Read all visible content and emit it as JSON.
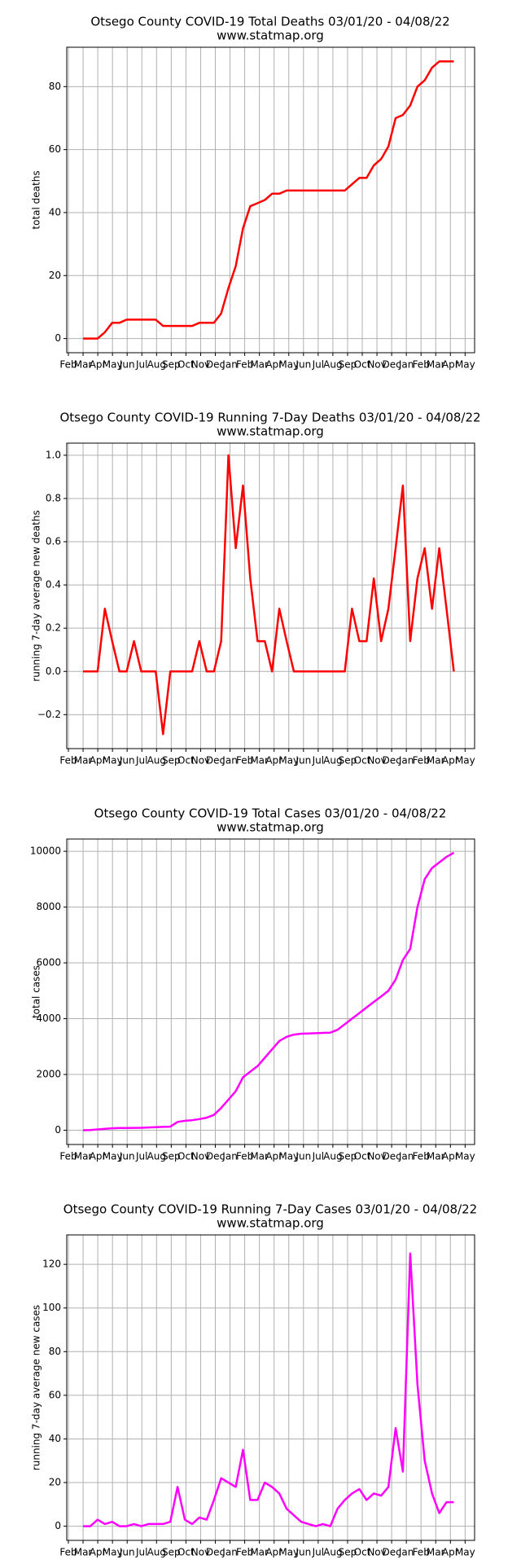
{
  "chart_data": [
    {
      "type": "line",
      "title": "Otsego County COVID-19 Total Deaths 03/01/20 - 04/08/22",
      "subtitle": "www.statmap.org",
      "ylabel": "total deaths",
      "xticks": [
        "Feb",
        "Mar",
        "Apr",
        "May",
        "Jun",
        "Jul",
        "Aug",
        "Sep",
        "Oct",
        "Nov",
        "Dec",
        "Jan",
        "Feb",
        "Mar",
        "Apr",
        "May",
        "Jun",
        "Jul",
        "Aug",
        "Sep",
        "Oct",
        "Nov",
        "Dec",
        "Jan",
        "Feb",
        "Mar",
        "Apr",
        "May"
      ],
      "color": "#ff0000",
      "grid": true,
      "ylim": [
        -4.5,
        92.5
      ],
      "yticks": [
        0,
        20,
        40,
        60,
        80
      ],
      "values": [
        0,
        0,
        0,
        2,
        5,
        5,
        6,
        6,
        6,
        6,
        6,
        4,
        4,
        4,
        4,
        4,
        5,
        5,
        5,
        8,
        16,
        23,
        35,
        42,
        43,
        44,
        46,
        46,
        47,
        47,
        47,
        47,
        47,
        47,
        47,
        47,
        47,
        49,
        51,
        51,
        55,
        57,
        61,
        70,
        71,
        74,
        80,
        82,
        86,
        88,
        88,
        88
      ]
    },
    {
      "type": "line",
      "title": "Otsego County COVID-19 Running 7-Day Deaths 03/01/20 - 04/08/22",
      "subtitle": "www.statmap.org",
      "ylabel": "running 7-day average new deaths",
      "xticks": [
        "Feb",
        "Mar",
        "Apr",
        "May",
        "Jun",
        "Jul",
        "Aug",
        "Sep",
        "Oct",
        "Nov",
        "Dec",
        "Jan",
        "Feb",
        "Mar",
        "Apr",
        "May",
        "Jun",
        "Jul",
        "Aug",
        "Sep",
        "Oct",
        "Nov",
        "Dec",
        "Jan",
        "Feb",
        "Mar",
        "Apr",
        "May"
      ],
      "color": "#ff0000",
      "grid": true,
      "ylim": [
        -0.357,
        1.056
      ],
      "yticks": [
        {
          "value": -0.2,
          "label": "−0.2"
        },
        {
          "value": 0,
          "label": "0.0"
        },
        0.2,
        0.4,
        0.6,
        0.8,
        {
          "value": 1,
          "label": "1.0"
        }
      ],
      "values": [
        0,
        0,
        0,
        0.29,
        0.14,
        0,
        0,
        0.14,
        0,
        0,
        0,
        -0.29,
        0,
        0,
        0,
        0,
        0.14,
        0,
        0,
        0.14,
        1.0,
        0.57,
        0.86,
        0.43,
        0.14,
        0.14,
        0,
        0.29,
        0.14,
        0,
        0,
        0,
        0,
        0,
        0,
        0,
        0,
        0.29,
        0.14,
        0.14,
        0.43,
        0.14,
        0.29,
        0.57,
        0.86,
        0.14,
        0.43,
        0.57,
        0.29,
        0.57,
        0.29,
        0
      ]
    },
    {
      "type": "line",
      "title": "Otsego County COVID-19 Total Cases 03/01/20 - 04/08/22",
      "subtitle": "www.statmap.org",
      "ylabel": "total cases",
      "xticks": [
        "Feb",
        "Mar",
        "Apr",
        "May",
        "Jun",
        "Jul",
        "Aug",
        "Sep",
        "Oct",
        "Nov",
        "Dec",
        "Jan",
        "Feb",
        "Mar",
        "Apr",
        "May",
        "Jun",
        "Jul",
        "Aug",
        "Sep",
        "Oct",
        "Nov",
        "Dec",
        "Jan",
        "Feb",
        "Mar",
        "Apr",
        "May"
      ],
      "color": "#ff00ff",
      "grid": true,
      "ylim": [
        -510,
        10440
      ],
      "yticks": [
        0,
        2000,
        4000,
        6000,
        8000,
        10000
      ],
      "values": [
        0,
        10,
        30,
        50,
        70,
        80,
        80,
        85,
        90,
        100,
        110,
        120,
        130,
        300,
        340,
        360,
        400,
        450,
        550,
        800,
        1100,
        1400,
        1900,
        2100,
        2300,
        2600,
        2900,
        3200,
        3350,
        3430,
        3460,
        3470,
        3480,
        3490,
        3500,
        3600,
        3800,
        4000,
        4200,
        4400,
        4600,
        4800,
        5000,
        5400,
        6100,
        6500,
        8000,
        9000,
        9400,
        9600,
        9800,
        9950
      ]
    },
    {
      "type": "line",
      "title": "Otsego County COVID-19 Running 7-Day Cases 03/01/20 - 04/08/22",
      "subtitle": "www.statmap.org",
      "ylabel": "running 7-day average new cases",
      "xticks": [
        "Feb",
        "Mar",
        "Apr",
        "May",
        "Jun",
        "Jul",
        "Aug",
        "Sep",
        "Oct",
        "Nov",
        "Dec",
        "Jan",
        "Feb",
        "Mar",
        "Apr",
        "May",
        "Jun",
        "Jul",
        "Aug",
        "Sep",
        "Oct",
        "Nov",
        "Dec",
        "Jan",
        "Feb",
        "Mar",
        "Apr",
        "May"
      ],
      "color": "#ff00ff",
      "grid": true,
      "ylim": [
        -6.5,
        133.5
      ],
      "yticks": [
        0,
        20,
        40,
        60,
        80,
        100,
        120
      ],
      "values": [
        0,
        0,
        3,
        1,
        2,
        0,
        0,
        1,
        0,
        1,
        1,
        1,
        2,
        18,
        3,
        1,
        4,
        3,
        12,
        22,
        20,
        18,
        35,
        12,
        12,
        20,
        18,
        15,
        8,
        5,
        2,
        1,
        0,
        1,
        0,
        8,
        12,
        15,
        17,
        12,
        15,
        14,
        18,
        45,
        25,
        125,
        65,
        30,
        15,
        6,
        11,
        11
      ]
    }
  ]
}
